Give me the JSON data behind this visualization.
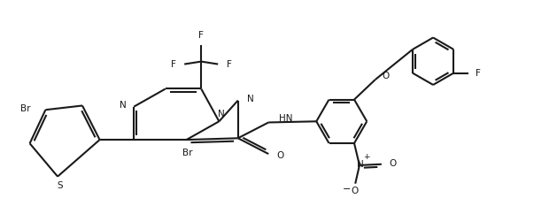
{
  "background_color": "#ffffff",
  "line_color": "#1a1a1a",
  "line_width": 1.5,
  "figure_width": 6.29,
  "figure_height": 2.33,
  "dpi": 100,
  "xlim": [
    0,
    10.5
  ],
  "ylim": [
    0,
    3.9
  ]
}
